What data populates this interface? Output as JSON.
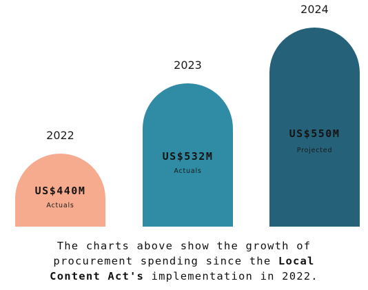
{
  "chart_data": {
    "type": "bar",
    "categories": [
      "2022",
      "2023",
      "2024"
    ],
    "values": [
      440,
      532,
      550
    ],
    "value_labels": [
      "US$440M",
      "US$532M",
      "US$550M"
    ],
    "status_labels": [
      "Actuals",
      "Actuals",
      "Projected"
    ],
    "unit": "US$ millions",
    "colors": [
      "#F6AA8E",
      "#2F8CA4",
      "#256179"
    ]
  },
  "caption": {
    "line1": "The charts above show the growth of",
    "line2_pre": "procurement spending since the ",
    "line2_bold": "Local",
    "line3_bold": "Content Act's",
    "line3_post": " implementation in 2022."
  }
}
